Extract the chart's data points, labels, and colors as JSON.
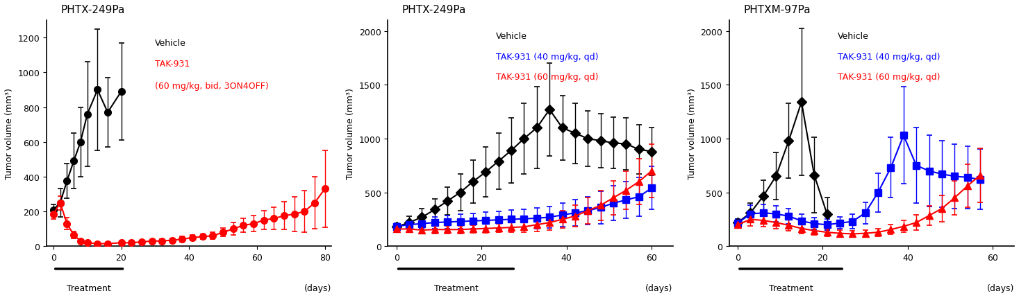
{
  "panel1": {
    "title": "PHTX-249Pa",
    "ylabel": "Tumor volume (mm³)",
    "xlim": [
      -2,
      82
    ],
    "ylim": [
      0,
      1300
    ],
    "yticks": [
      0,
      200,
      400,
      600,
      800,
      1000,
      1200
    ],
    "xticks": [
      0,
      20,
      40,
      60,
      80
    ],
    "treatment_bar": [
      0,
      21
    ],
    "series": [
      {
        "label": "Vehicle",
        "color": "black",
        "marker": "o",
        "markersize": 7,
        "x": [
          0,
          2,
          4,
          6,
          8,
          10,
          13,
          16,
          20
        ],
        "y": [
          210,
          250,
          375,
          490,
          600,
          760,
          900,
          770,
          890
        ],
        "yerr": [
          30,
          80,
          100,
          160,
          200,
          300,
          350,
          200,
          280
        ]
      },
      {
        "label": "TAK-931\n(60 mg/kg, bid, 3ON4OFF)",
        "color": "red",
        "marker": "o",
        "markersize": 7,
        "x": [
          0,
          2,
          4,
          6,
          8,
          10,
          13,
          16,
          20,
          23,
          26,
          29,
          32,
          35,
          38,
          41,
          44,
          47,
          50,
          53,
          56,
          59,
          62,
          65,
          68,
          71,
          74,
          77,
          80
        ],
        "y": [
          185,
          250,
          130,
          65,
          30,
          20,
          15,
          15,
          20,
          20,
          25,
          30,
          30,
          35,
          40,
          50,
          55,
          60,
          80,
          100,
          120,
          130,
          150,
          160,
          175,
          185,
          200,
          250,
          330
        ],
        "yerr": [
          30,
          40,
          35,
          20,
          10,
          8,
          5,
          5,
          5,
          5,
          8,
          8,
          10,
          10,
          15,
          15,
          15,
          20,
          25,
          35,
          40,
          45,
          55,
          65,
          80,
          100,
          120,
          150,
          220
        ]
      }
    ],
    "legend_texts": [
      "Vehicle",
      "TAK-931\n(60 mg/kg, bid, 3ON4OFF)"
    ],
    "legend_colors": [
      "black",
      "red"
    ]
  },
  "panel2": {
    "title": "PHTX-249Pa",
    "ylabel": "Tumor volume (mm³)",
    "xlim": [
      -2,
      65
    ],
    "ylim": [
      0,
      2100
    ],
    "yticks": [
      0,
      500,
      1000,
      1500,
      2000
    ],
    "xticks": [
      0,
      20,
      40,
      60
    ],
    "treatment_bar": [
      0,
      28
    ],
    "series": [
      {
        "label": "Vehicle",
        "color": "black",
        "marker": "D",
        "markersize": 7,
        "x": [
          0,
          3,
          6,
          9,
          12,
          15,
          18,
          21,
          24,
          27,
          30,
          33,
          36,
          39,
          42,
          45,
          48,
          51,
          54,
          57,
          60
        ],
        "y": [
          180,
          220,
          270,
          340,
          420,
          500,
          600,
          690,
          790,
          890,
          1000,
          1100,
          1270,
          1100,
          1050,
          1000,
          980,
          960,
          950,
          900,
          880
        ],
        "yerr": [
          30,
          60,
          80,
          100,
          130,
          170,
          200,
          230,
          260,
          300,
          330,
          380,
          430,
          300,
          280,
          260,
          250,
          240,
          240,
          230,
          220
        ]
      },
      {
        "label": "TAK-931 (40 mg/kg, qd)",
        "color": "blue",
        "marker": "s",
        "markersize": 7,
        "x": [
          0,
          3,
          6,
          9,
          12,
          15,
          18,
          21,
          24,
          27,
          30,
          33,
          36,
          39,
          42,
          45,
          48,
          51,
          54,
          57,
          60
        ],
        "y": [
          185,
          200,
          210,
          220,
          225,
          230,
          235,
          240,
          245,
          250,
          255,
          260,
          270,
          290,
          310,
          330,
          360,
          400,
          430,
          460,
          540
        ],
        "yerr": [
          30,
          40,
          50,
          55,
          60,
          65,
          70,
          75,
          80,
          85,
          90,
          95,
          100,
          110,
          120,
          130,
          150,
          160,
          170,
          180,
          200
        ]
      },
      {
        "label": "TAK-931 (60 mg/kg, qd)",
        "color": "red",
        "marker": "^",
        "markersize": 7,
        "x": [
          0,
          3,
          6,
          9,
          12,
          15,
          18,
          21,
          24,
          27,
          30,
          33,
          36,
          39,
          42,
          45,
          48,
          51,
          54,
          57,
          60
        ],
        "y": [
          160,
          160,
          150,
          155,
          155,
          155,
          160,
          165,
          170,
          175,
          180,
          200,
          220,
          250,
          280,
          330,
          380,
          450,
          520,
          600,
          700
        ],
        "yerr": [
          25,
          30,
          30,
          35,
          35,
          35,
          35,
          40,
          40,
          45,
          50,
          60,
          70,
          80,
          100,
          120,
          140,
          160,
          180,
          210,
          250
        ]
      }
    ],
    "legend_texts": [
      "Vehicle",
      "TAK-931 (40 mg/kg, qd)",
      "TAK-931 (60 mg/kg, qd)"
    ],
    "legend_colors": [
      "black",
      "blue",
      "red"
    ]
  },
  "panel3": {
    "title": "PHTXM-97Pa",
    "ylabel": "Tumor volume (mm³)",
    "xlim": [
      -2,
      65
    ],
    "ylim": [
      0,
      2100
    ],
    "yticks": [
      0,
      500,
      1000,
      1500,
      2000
    ],
    "xticks": [
      0,
      20,
      40,
      60
    ],
    "treatment_bar": [
      0,
      25
    ],
    "series": [
      {
        "label": "Vehicle",
        "color": "black",
        "marker": "D",
        "markersize": 7,
        "x": [
          0,
          3,
          6,
          9,
          12,
          15,
          18,
          21
        ],
        "y": [
          220,
          310,
          465,
          650,
          980,
          1340,
          660,
          300
        ],
        "yerr": [
          35,
          90,
          150,
          220,
          350,
          680,
          350,
          150
        ]
      },
      {
        "label": "TAK-931 (40 mg/kg, qd)",
        "color": "blue",
        "marker": "s",
        "markersize": 7,
        "x": [
          0,
          3,
          6,
          9,
          12,
          15,
          18,
          21,
          24,
          27,
          30,
          33,
          36,
          39,
          42,
          45,
          48,
          51,
          54,
          57
        ],
        "y": [
          215,
          300,
          310,
          300,
          280,
          235,
          210,
          200,
          215,
          230,
          310,
          500,
          730,
          1030,
          750,
          700,
          670,
          650,
          640,
          620
        ],
        "yerr": [
          35,
          80,
          80,
          75,
          70,
          65,
          55,
          50,
          55,
          65,
          100,
          180,
          280,
          450,
          350,
          330,
          310,
          300,
          290,
          280
        ]
      },
      {
        "label": "TAK-931 (60 mg/kg, qd)",
        "color": "red",
        "marker": "^",
        "markersize": 7,
        "x": [
          0,
          3,
          6,
          9,
          12,
          15,
          18,
          21,
          24,
          27,
          30,
          33,
          36,
          39,
          42,
          45,
          48,
          51,
          54,
          57
        ],
        "y": [
          200,
          250,
          240,
          220,
          195,
          165,
          145,
          130,
          120,
          115,
          120,
          130,
          155,
          185,
          220,
          285,
          350,
          450,
          560,
          660
        ],
        "yerr": [
          30,
          60,
          60,
          55,
          50,
          45,
          40,
          35,
          30,
          28,
          30,
          35,
          45,
          55,
          70,
          90,
          120,
          160,
          200,
          250
        ]
      }
    ],
    "legend_texts": [
      "Vehicle",
      "TAK-931 (40 mg/kg, qd)",
      "TAK-931 (60 mg/kg, qd)"
    ],
    "legend_colors": [
      "black",
      "blue",
      "red"
    ]
  }
}
